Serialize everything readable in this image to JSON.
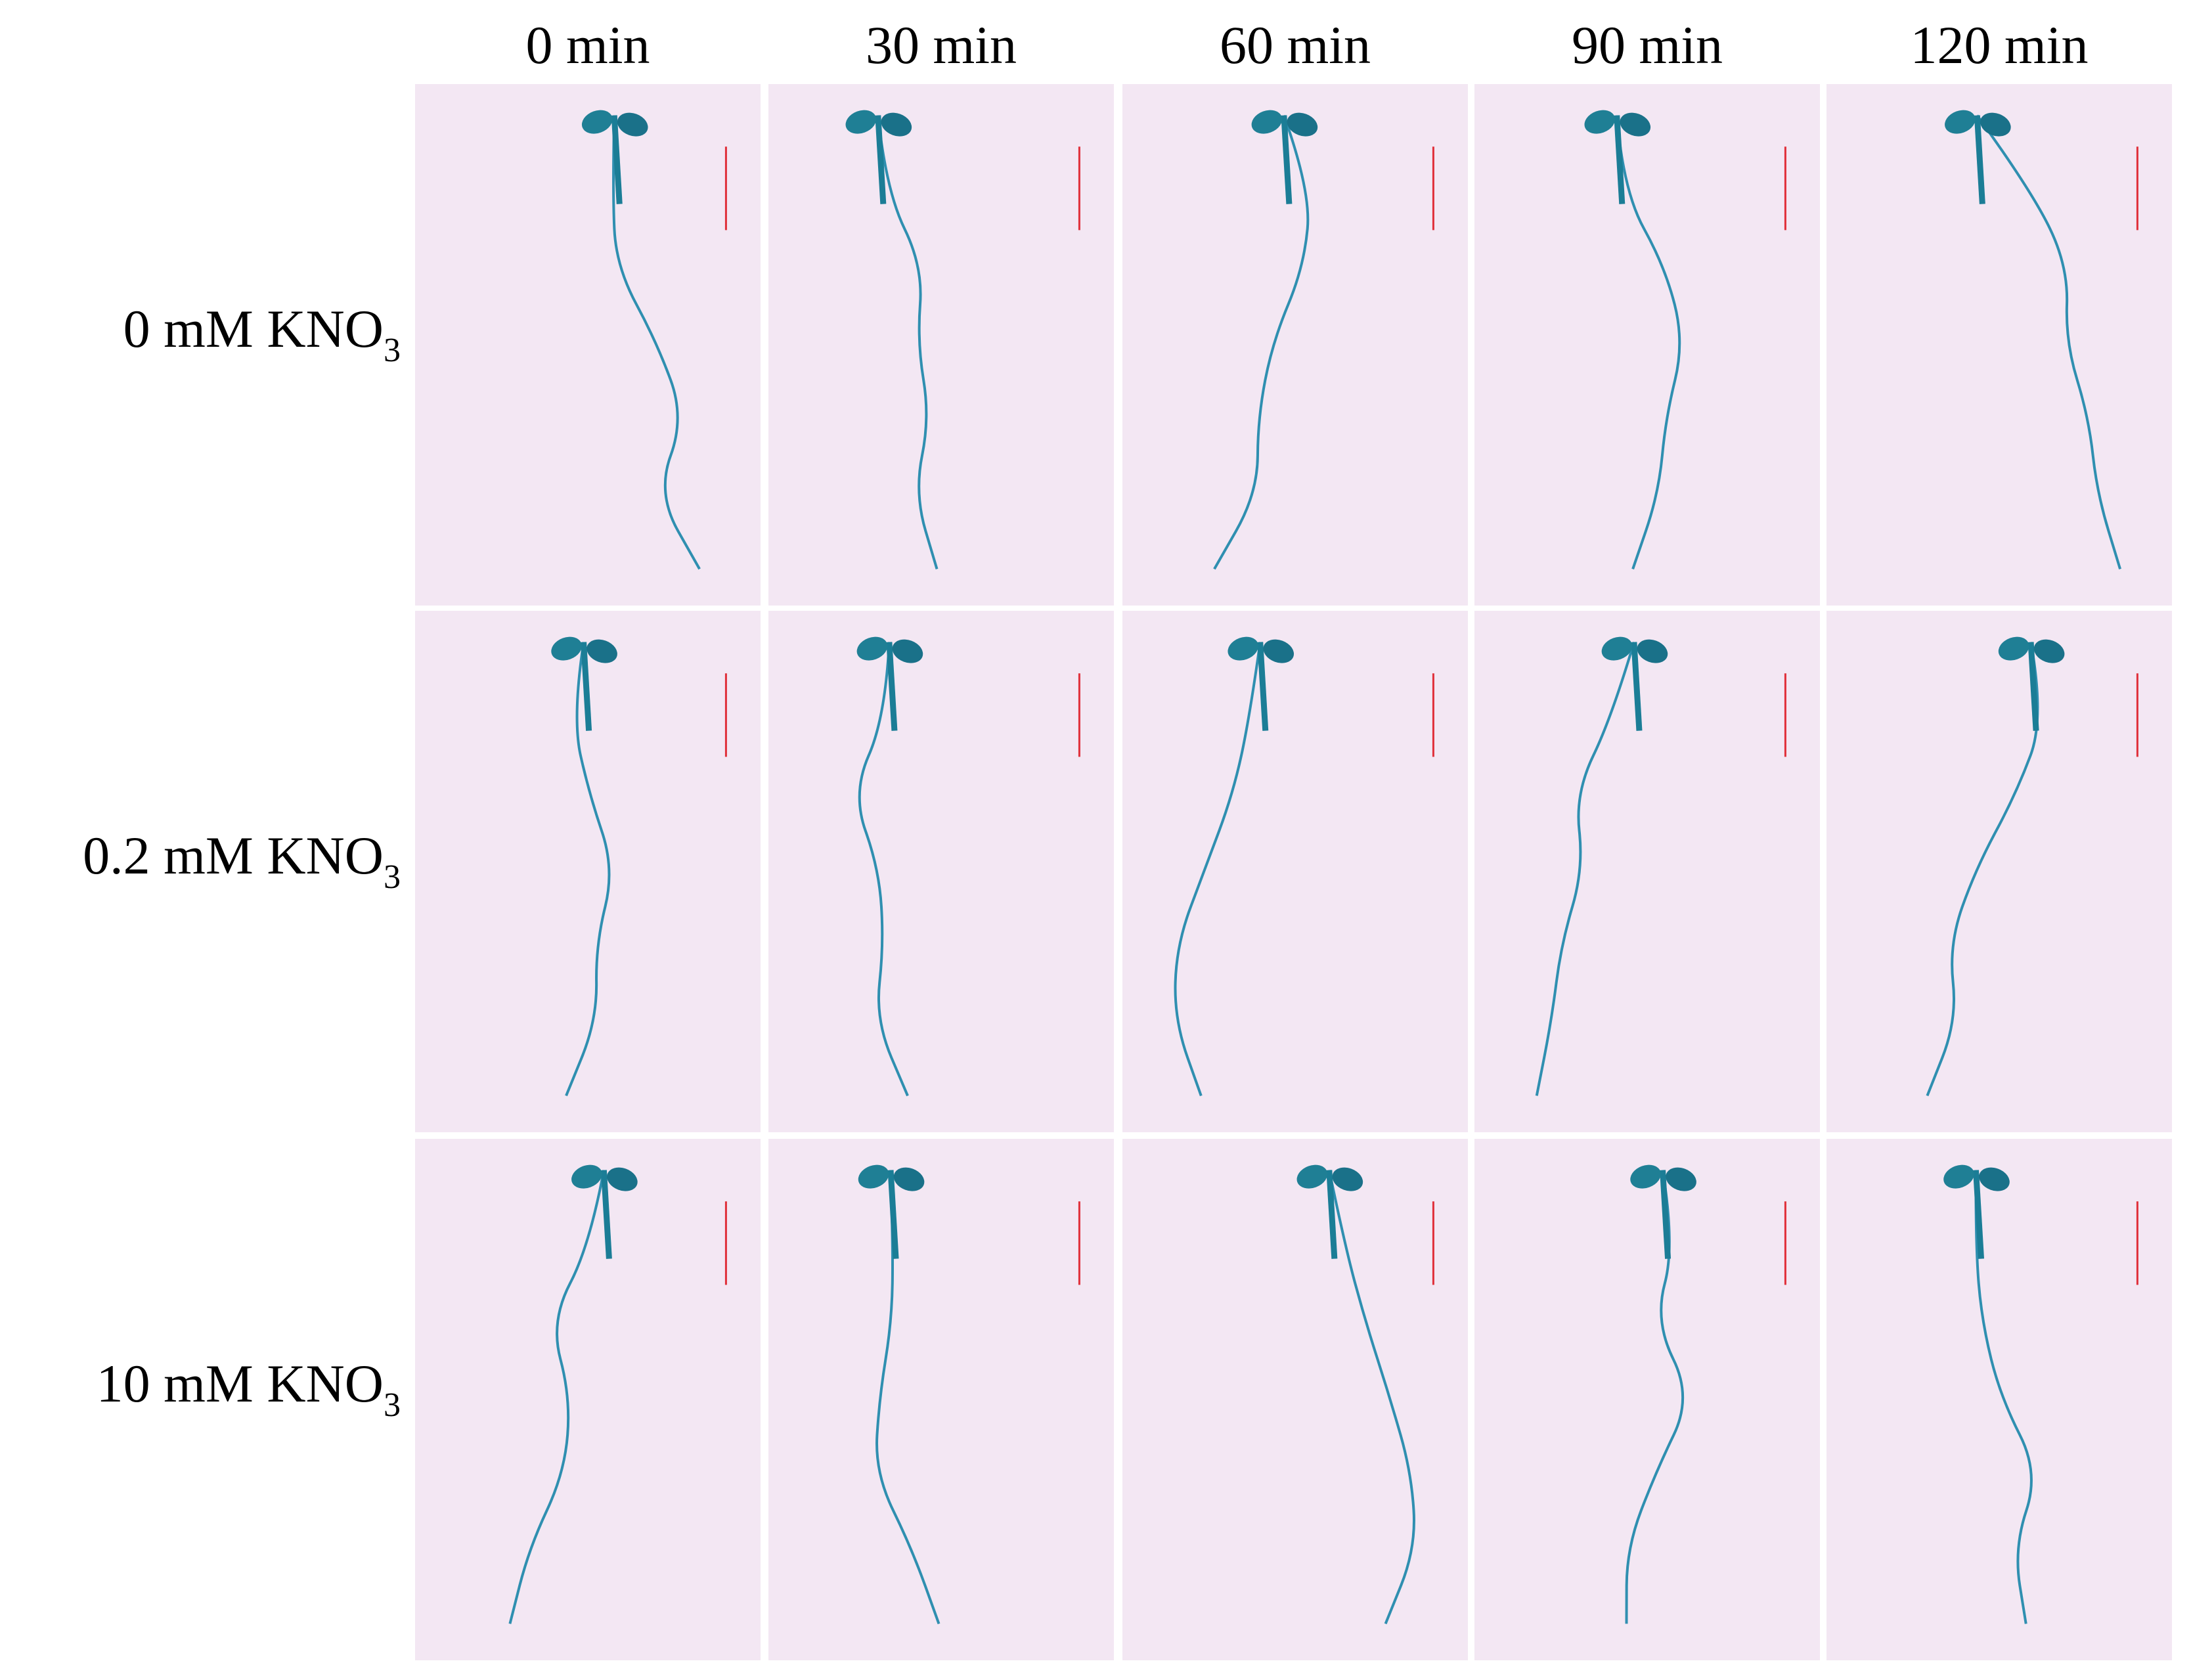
{
  "col_labels": [
    "0 min",
    "30 min",
    "60 min",
    "90 min",
    "120 min"
  ],
  "row_labels": [
    {
      "main": "0 mM KNO",
      "sub": "3"
    },
    {
      "main": "0.2 mM KNO",
      "sub": "3"
    },
    {
      "main": "10 mM KNO",
      "sub": "3"
    }
  ]
}
